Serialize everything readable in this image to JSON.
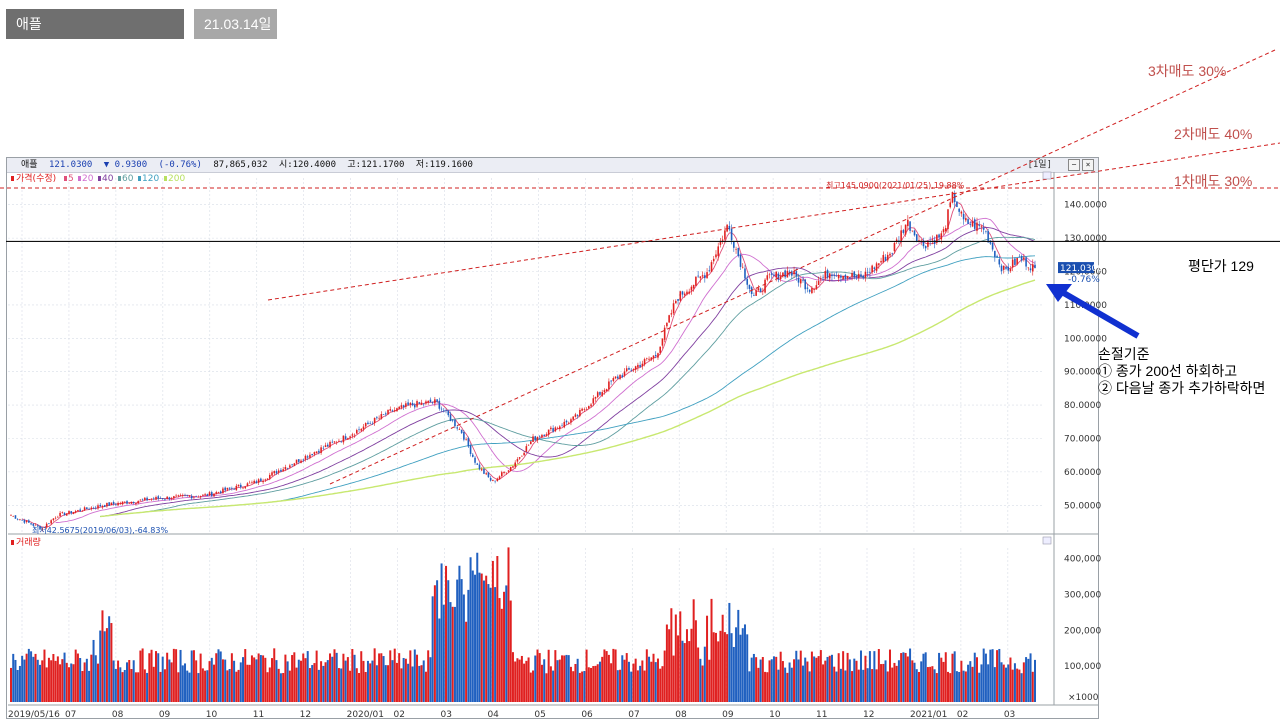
{
  "tabs": {
    "title": "애플",
    "date": "21.03.14일"
  },
  "quote_bar": {
    "name": "애플",
    "price": "121.0300",
    "change": "▼ 0.9300",
    "change_pct": "(-0.76%)",
    "volume": "87,865,032",
    "open": "시:120.4000",
    "high": "고:121.1700",
    "low": "저:119.1600",
    "period": "[1일]"
  },
  "legend": {
    "price_label": "가격(수정)",
    "ma_items": [
      {
        "label": "5",
        "color": "#e0507a"
      },
      {
        "label": "20",
        "color": "#d070d0"
      },
      {
        "label": "40",
        "color": "#8040a0"
      },
      {
        "label": "60",
        "color": "#5f9ea0"
      },
      {
        "label": "120",
        "color": "#40a0c0"
      },
      {
        "label": "200",
        "color": "#b8e060"
      }
    ],
    "volume_label": "거래량"
  },
  "annotations": {
    "high_label": "최고145.0900(2021/01/25),19.88%",
    "low_label": "최저42.5675(2019/06/03),-64.83%",
    "sell3": "3차매도 30%",
    "sell2": "2차매도 40%",
    "sell1": "1차매도 30%",
    "avg_cost": "평단가 129",
    "stoploss_title": "손절기준",
    "stoploss_1": "① 종가 200선 하회하고",
    "stoploss_2": "② 다음날 종가 추가하락하면",
    "last_price_tag": "121.0300",
    "last_change_tag": "-0.76%"
  },
  "chart_data": {
    "type": "line",
    "title": "",
    "price_axis": {
      "ylim": [
        42,
        148
      ],
      "ticks": [
        "140.0000",
        "130.0000",
        "120.0000",
        "110.0000",
        "100.0000",
        "90.0000",
        "80.0000",
        "70.0000",
        "60.0000",
        "50.0000"
      ]
    },
    "volume_axis": {
      "ylim": [
        0,
        430
      ],
      "unit": "×1000",
      "ticks": [
        "400,000",
        "300,000",
        "200,000",
        "100,000"
      ]
    },
    "x_ticks": [
      "2019/05/16",
      "07",
      "08",
      "09",
      "10",
      "11",
      "12",
      "2020/01",
      "02",
      "03",
      "04",
      "05",
      "06",
      "07",
      "08",
      "09",
      "10",
      "11",
      "12",
      "2021/01",
      "02",
      "03"
    ],
    "close_anchors": [
      {
        "t": 0,
        "v": 47
      },
      {
        "t": 0.015,
        "v": 45
      },
      {
        "t": 0.03,
        "v": 43
      },
      {
        "t": 0.045,
        "v": 47
      },
      {
        "t": 0.09,
        "v": 50
      },
      {
        "t": 0.14,
        "v": 52
      },
      {
        "t": 0.19,
        "v": 53
      },
      {
        "t": 0.24,
        "v": 57
      },
      {
        "t": 0.29,
        "v": 65
      },
      {
        "t": 0.33,
        "v": 71
      },
      {
        "t": 0.37,
        "v": 78
      },
      {
        "t": 0.39,
        "v": 80
      },
      {
        "t": 0.415,
        "v": 81
      },
      {
        "t": 0.44,
        "v": 72
      },
      {
        "t": 0.455,
        "v": 62
      },
      {
        "t": 0.47,
        "v": 57
      },
      {
        "t": 0.49,
        "v": 62
      },
      {
        "t": 0.51,
        "v": 70
      },
      {
        "t": 0.55,
        "v": 76
      },
      {
        "t": 0.59,
        "v": 88
      },
      {
        "t": 0.63,
        "v": 95
      },
      {
        "t": 0.65,
        "v": 112
      },
      {
        "t": 0.68,
        "v": 120
      },
      {
        "t": 0.7,
        "v": 134
      },
      {
        "t": 0.71,
        "v": 125
      },
      {
        "t": 0.725,
        "v": 112
      },
      {
        "t": 0.74,
        "v": 118
      },
      {
        "t": 0.76,
        "v": 120
      },
      {
        "t": 0.78,
        "v": 115
      },
      {
        "t": 0.8,
        "v": 120
      },
      {
        "t": 0.83,
        "v": 118
      },
      {
        "t": 0.86,
        "v": 126
      },
      {
        "t": 0.875,
        "v": 135
      },
      {
        "t": 0.89,
        "v": 128
      },
      {
        "t": 0.91,
        "v": 131
      },
      {
        "t": 0.92,
        "v": 143
      },
      {
        "t": 0.93,
        "v": 135
      },
      {
        "t": 0.95,
        "v": 133
      },
      {
        "t": 0.96,
        "v": 126
      },
      {
        "t": 0.97,
        "v": 120
      },
      {
        "t": 0.985,
        "v": 124
      },
      {
        "t": 1.0,
        "v": 121
      }
    ],
    "ma_series": [
      {
        "name": "5",
        "color": "#e0507a",
        "period": 5
      },
      {
        "name": "20",
        "color": "#d070d0",
        "period": 20
      },
      {
        "name": "40",
        "color": "#8040a0",
        "period": 40
      },
      {
        "name": "60",
        "color": "#5f9ea0",
        "period": 60
      },
      {
        "name": "120",
        "color": "#40a0c0",
        "period": 120
      },
      {
        "name": "200",
        "color": "#c8e870",
        "period": 200
      }
    ],
    "reference_lines": [
      {
        "label": "1차매도 30%",
        "type": "horizontal",
        "value": 145,
        "color": "#d02020",
        "style": "dashed"
      },
      {
        "label": "평단가 129",
        "type": "horizontal",
        "value": 129,
        "color": "#000000",
        "style": "solid"
      }
    ],
    "trend_lines": [
      {
        "label": "2차매도 40%",
        "from": {
          "date": "2019/09",
          "value": "≈112"
        },
        "to": {
          "date": "2021/03",
          "value": "≈150"
        },
        "color": "#d02020",
        "style": "dashed"
      },
      {
        "label": "3차매도 30%",
        "from": {
          "date": "2020/02",
          "value": "≈60"
        },
        "to": {
          "date": "2021/03",
          "value": "≈165"
        },
        "color": "#d02020",
        "style": "dashed"
      }
    ],
    "colors": {
      "up": "#e02020",
      "down": "#2060c0",
      "grid": "#d8dde6",
      "ref_red": "#d02020"
    }
  }
}
